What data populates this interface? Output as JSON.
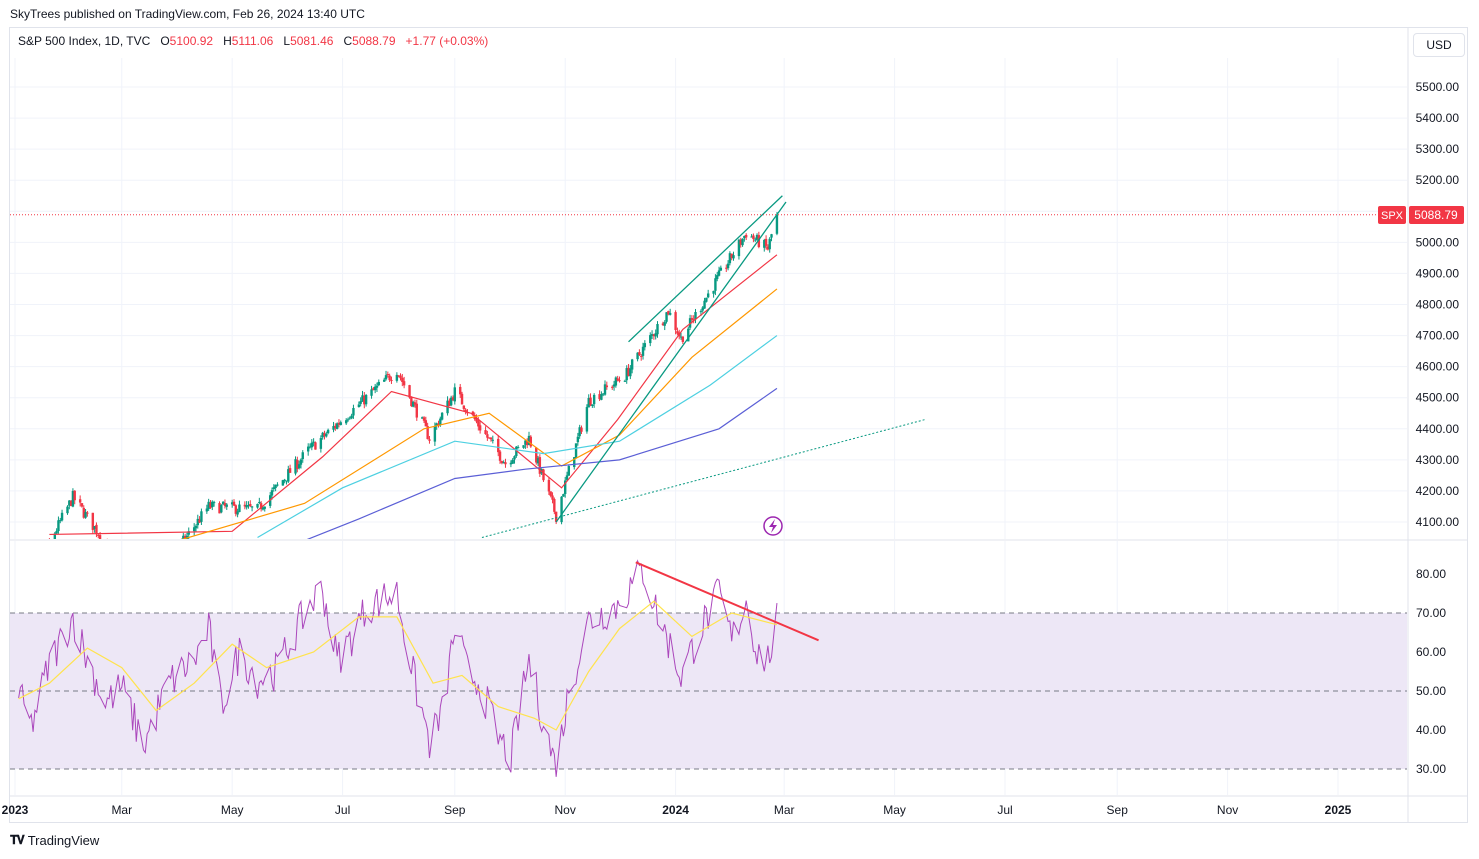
{
  "publisher": "SkyTrees published on TradingView.com, Feb 26, 2024 13:40 UTC",
  "legend": {
    "symbol": "S&P 500 Index, 1D, TVC",
    "open_label": "O",
    "open": "5100.92",
    "high_label": "H",
    "high": "5111.06",
    "low_label": "L",
    "low": "5081.46",
    "close_label": "C",
    "close": "5088.79",
    "change": "+1.77 (+0.03%)"
  },
  "currency_button": "USD",
  "price_tag": {
    "symbol": "SPX",
    "value": "5088.79"
  },
  "brand": "TradingView",
  "colors": {
    "up": "#089981",
    "down": "#f23645",
    "rsi": "#ab47bc",
    "rsi_ma": "#ffe34d",
    "rsi_band": "#ede7f6"
  },
  "chart_data": [
    {
      "type": "candlestick",
      "title": "S&P 500 Index, 1D, TVC",
      "y_ticks": [
        4100,
        4200,
        4300,
        4400,
        4500,
        4600,
        4700,
        4800,
        4900,
        5000,
        5100,
        5200,
        5300,
        5400,
        5500
      ],
      "x_ticks": [
        "2023",
        "Mar",
        "May",
        "Jul",
        "Sep",
        "Nov",
        "2024",
        "Mar",
        "May",
        "Jul",
        "Sep",
        "Nov",
        "2025"
      ],
      "last_price": 5088.79,
      "close_path": [
        [
          "2023-01-03",
          3840
        ],
        [
          "2023-02-02",
          4180
        ],
        [
          "2023-03-13",
          3860
        ],
        [
          "2023-04-18",
          4150
        ],
        [
          "2023-05-15",
          4140
        ],
        [
          "2023-06-12",
          4330
        ],
        [
          "2023-07-31",
          4590
        ],
        [
          "2023-08-18",
          4370
        ],
        [
          "2023-09-01",
          4520
        ],
        [
          "2023-09-29",
          4290
        ],
        [
          "2023-10-12",
          4370
        ],
        [
          "2023-10-27",
          4120
        ],
        [
          "2023-11-14",
          4490
        ],
        [
          "2023-12-04",
          4570
        ],
        [
          "2023-12-28",
          4780
        ],
        [
          "2024-01-04",
          4690
        ],
        [
          "2024-01-25",
          4890
        ],
        [
          "2024-02-09",
          5030
        ],
        [
          "2024-02-21",
          4980
        ],
        [
          "2024-02-26",
          5088.79
        ]
      ],
      "moving_averages": [
        {
          "color": "#f23645",
          "points": [
            [
              "2023-01-20",
              4060
            ],
            [
              "2023-05-01",
              4070
            ],
            [
              "2023-06-20",
              4310
            ],
            [
              "2023-07-28",
              4520
            ],
            [
              "2023-09-10",
              4450
            ],
            [
              "2023-10-30",
              4210
            ],
            [
              "2023-11-30",
              4430
            ],
            [
              "2024-01-05",
              4720
            ],
            [
              "2024-02-26",
              4960
            ]
          ]
        },
        {
          "color": "#ff9800",
          "points": [
            [
              "2023-04-01",
              4040
            ],
            [
              "2023-06-10",
              4160
            ],
            [
              "2023-08-15",
              4400
            ],
            [
              "2023-09-20",
              4450
            ],
            [
              "2023-10-30",
              4280
            ],
            [
              "2023-12-01",
              4380
            ],
            [
              "2024-01-10",
              4630
            ],
            [
              "2024-02-26",
              4850
            ]
          ]
        },
        {
          "color": "#4dd0e1",
          "points": [
            [
              "2023-05-15",
              4050
            ],
            [
              "2023-07-01",
              4210
            ],
            [
              "2023-09-01",
              4360
            ],
            [
              "2023-10-20",
              4320
            ],
            [
              "2023-12-01",
              4360
            ],
            [
              "2024-01-20",
              4540
            ],
            [
              "2024-02-26",
              4700
            ]
          ]
        },
        {
          "color": "#5b5fd6",
          "points": [
            [
              "2023-05-15",
              3980
            ],
            [
              "2023-07-10",
              4110
            ],
            [
              "2023-09-01",
              4240
            ],
            [
              "2023-10-10",
              4270
            ],
            [
              "2023-12-01",
              4300
            ],
            [
              "2024-01-25",
              4400
            ],
            [
              "2024-02-26",
              4530
            ]
          ]
        }
      ],
      "trendlines": [
        {
          "color": "#089981",
          "style": "solid",
          "from": [
            "2023-12-06",
            4680
          ],
          "to": [
            "2024-02-29",
            5150
          ]
        },
        {
          "color": "#089981",
          "style": "solid",
          "from": [
            "2023-10-27",
            4100
          ],
          "to": [
            "2024-03-02",
            5130
          ]
        },
        {
          "color": "#089981",
          "style": "dotted",
          "from": [
            "2023-09-16",
            4050
          ],
          "to": [
            "2024-05-18",
            4430
          ]
        }
      ]
    },
    {
      "type": "line",
      "title": "RSI",
      "y_ticks": [
        30,
        40,
        50,
        60,
        70,
        80
      ],
      "band": [
        30,
        70
      ],
      "midline": 50,
      "rsi_path": [
        [
          "2023-01-03",
          49
        ],
        [
          "2023-01-10",
          41
        ],
        [
          "2023-01-20",
          57
        ],
        [
          "2023-02-02",
          69
        ],
        [
          "2023-02-10",
          58
        ],
        [
          "2023-02-20",
          47
        ],
        [
          "2023-03-01",
          51
        ],
        [
          "2023-03-13",
          36
        ],
        [
          "2023-03-27",
          52
        ],
        [
          "2023-04-10",
          58
        ],
        [
          "2023-04-18",
          66
        ],
        [
          "2023-04-25",
          46
        ],
        [
          "2023-05-05",
          60
        ],
        [
          "2023-05-15",
          53
        ],
        [
          "2023-05-25",
          55
        ],
        [
          "2023-06-05",
          65
        ],
        [
          "2023-06-12",
          72
        ],
        [
          "2023-06-20",
          76
        ],
        [
          "2023-06-28",
          58
        ],
        [
          "2023-07-05",
          63
        ],
        [
          "2023-07-15",
          72
        ],
        [
          "2023-07-31",
          75
        ],
        [
          "2023-08-10",
          52
        ],
        [
          "2023-08-18",
          37
        ],
        [
          "2023-08-25",
          44
        ],
        [
          "2023-09-01",
          66
        ],
        [
          "2023-09-08",
          55
        ],
        [
          "2023-09-15",
          52
        ],
        [
          "2023-09-25",
          38
        ],
        [
          "2023-10-02",
          33
        ],
        [
          "2023-10-12",
          58
        ],
        [
          "2023-10-20",
          42
        ],
        [
          "2023-10-27",
          30
        ],
        [
          "2023-11-03",
          50
        ],
        [
          "2023-11-14",
          68
        ],
        [
          "2023-11-30",
          72
        ],
        [
          "2023-12-14",
          81
        ],
        [
          "2023-12-22",
          70
        ],
        [
          "2024-01-04",
          54
        ],
        [
          "2024-01-15",
          66
        ],
        [
          "2024-01-25",
          75
        ],
        [
          "2024-02-01",
          63
        ],
        [
          "2024-02-09",
          73
        ],
        [
          "2024-02-15",
          60
        ],
        [
          "2024-02-21",
          58
        ],
        [
          "2024-02-26",
          68
        ]
      ],
      "rsi_ma_path": [
        [
          "2023-01-03",
          48
        ],
        [
          "2023-01-20",
          52
        ],
        [
          "2023-02-10",
          61
        ],
        [
          "2023-03-01",
          56
        ],
        [
          "2023-03-20",
          45
        ],
        [
          "2023-04-10",
          52
        ],
        [
          "2023-05-01",
          62
        ],
        [
          "2023-05-20",
          56
        ],
        [
          "2023-06-15",
          60
        ],
        [
          "2023-07-10",
          69
        ],
        [
          "2023-07-31",
          69
        ],
        [
          "2023-08-20",
          52
        ],
        [
          "2023-09-05",
          54
        ],
        [
          "2023-09-25",
          46
        ],
        [
          "2023-10-15",
          43
        ],
        [
          "2023-10-27",
          40
        ],
        [
          "2023-11-14",
          55
        ],
        [
          "2023-12-01",
          66
        ],
        [
          "2023-12-20",
          73
        ],
        [
          "2024-01-10",
          64
        ],
        [
          "2024-02-01",
          70
        ],
        [
          "2024-02-26",
          67
        ]
      ],
      "divergence_line": {
        "color": "#f23645",
        "from": [
          "2023-12-10",
          83
        ],
        "to": [
          "2024-03-20",
          63
        ]
      }
    }
  ]
}
